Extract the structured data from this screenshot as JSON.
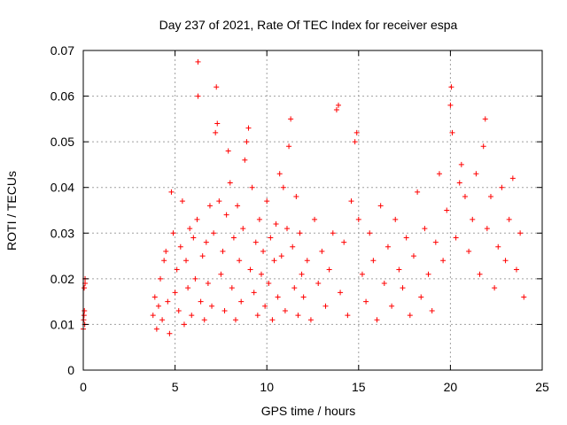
{
  "chart_data": {
    "type": "scatter",
    "title": "Day 237 of 2021, Rate Of TEC Index for receiver espa",
    "xlabel": "GPS time / hours",
    "ylabel": "ROTI / TECUs",
    "xlim": [
      0,
      25
    ],
    "ylim": [
      0,
      0.07
    ],
    "xticks": [
      0,
      5,
      10,
      15,
      20,
      25
    ],
    "xtick_labels": [
      "0",
      "5",
      "10",
      "15",
      "20",
      "25"
    ],
    "yticks": [
      0,
      0.01,
      0.02,
      0.03,
      0.04,
      0.05,
      0.06,
      0.07
    ],
    "ytick_labels": [
      "0",
      "0.01",
      "0.02",
      "0.03",
      "0.04",
      "0.05",
      "0.06",
      "0.07"
    ],
    "grid": true,
    "marker": "+",
    "color": "#ff0000",
    "series": [
      {
        "name": "ROTI",
        "points": [
          [
            0.0,
            0.009
          ],
          [
            0.02,
            0.011
          ],
          [
            0.04,
            0.012
          ],
          [
            0.06,
            0.013
          ],
          [
            0.08,
            0.01
          ],
          [
            0.1,
            0.019
          ],
          [
            0.1,
            0.02
          ],
          [
            0.05,
            0.018
          ],
          [
            3.8,
            0.012
          ],
          [
            3.9,
            0.016
          ],
          [
            4.0,
            0.009
          ],
          [
            4.1,
            0.014
          ],
          [
            4.2,
            0.02
          ],
          [
            4.3,
            0.011
          ],
          [
            4.4,
            0.024
          ],
          [
            4.5,
            0.026
          ],
          [
            4.6,
            0.015
          ],
          [
            4.7,
            0.008
          ],
          [
            4.8,
            0.039
          ],
          [
            4.9,
            0.03
          ],
          [
            5.0,
            0.017
          ],
          [
            5.1,
            0.022
          ],
          [
            5.2,
            0.013
          ],
          [
            5.3,
            0.027
          ],
          [
            5.4,
            0.037
          ],
          [
            5.5,
            0.01
          ],
          [
            5.6,
            0.024
          ],
          [
            5.7,
            0.018
          ],
          [
            5.8,
            0.031
          ],
          [
            5.9,
            0.012
          ],
          [
            6.0,
            0.029
          ],
          [
            6.1,
            0.02
          ],
          [
            6.2,
            0.033
          ],
          [
            6.25,
            0.06
          ],
          [
            6.25,
            0.0675
          ],
          [
            6.4,
            0.015
          ],
          [
            6.5,
            0.025
          ],
          [
            6.6,
            0.011
          ],
          [
            6.7,
            0.028
          ],
          [
            6.8,
            0.019
          ],
          [
            6.9,
            0.036
          ],
          [
            7.0,
            0.014
          ],
          [
            7.1,
            0.03
          ],
          [
            7.2,
            0.052
          ],
          [
            7.25,
            0.062
          ],
          [
            7.3,
            0.054
          ],
          [
            7.4,
            0.037
          ],
          [
            7.5,
            0.021
          ],
          [
            7.6,
            0.026
          ],
          [
            7.7,
            0.013
          ],
          [
            7.8,
            0.034
          ],
          [
            7.9,
            0.048
          ],
          [
            8.0,
            0.041
          ],
          [
            8.1,
            0.018
          ],
          [
            8.2,
            0.029
          ],
          [
            8.3,
            0.011
          ],
          [
            8.4,
            0.036
          ],
          [
            8.5,
            0.024
          ],
          [
            8.6,
            0.015
          ],
          [
            8.7,
            0.031
          ],
          [
            8.8,
            0.046
          ],
          [
            8.9,
            0.05
          ],
          [
            9.0,
            0.053
          ],
          [
            9.1,
            0.022
          ],
          [
            9.2,
            0.04
          ],
          [
            9.3,
            0.017
          ],
          [
            9.4,
            0.028
          ],
          [
            9.5,
            0.012
          ],
          [
            9.6,
            0.033
          ],
          [
            9.7,
            0.021
          ],
          [
            9.8,
            0.026
          ],
          [
            9.9,
            0.014
          ],
          [
            10.0,
            0.037
          ],
          [
            10.1,
            0.019
          ],
          [
            10.2,
            0.029
          ],
          [
            10.3,
            0.011
          ],
          [
            10.4,
            0.024
          ],
          [
            10.5,
            0.032
          ],
          [
            10.6,
            0.016
          ],
          [
            10.7,
            0.043
          ],
          [
            10.8,
            0.025
          ],
          [
            10.9,
            0.04
          ],
          [
            11.0,
            0.013
          ],
          [
            11.1,
            0.031
          ],
          [
            11.2,
            0.049
          ],
          [
            11.3,
            0.055
          ],
          [
            11.4,
            0.027
          ],
          [
            11.5,
            0.018
          ],
          [
            11.6,
            0.038
          ],
          [
            11.7,
            0.012
          ],
          [
            11.8,
            0.03
          ],
          [
            11.9,
            0.021
          ],
          [
            12.0,
            0.016
          ],
          [
            12.2,
            0.024
          ],
          [
            12.4,
            0.011
          ],
          [
            12.6,
            0.033
          ],
          [
            12.8,
            0.019
          ],
          [
            13.0,
            0.026
          ],
          [
            13.2,
            0.014
          ],
          [
            13.4,
            0.022
          ],
          [
            13.6,
            0.03
          ],
          [
            13.8,
            0.057
          ],
          [
            13.9,
            0.058
          ],
          [
            14.0,
            0.017
          ],
          [
            14.2,
            0.028
          ],
          [
            14.4,
            0.012
          ],
          [
            14.6,
            0.037
          ],
          [
            14.8,
            0.05
          ],
          [
            14.9,
            0.052
          ],
          [
            15.0,
            0.033
          ],
          [
            15.2,
            0.021
          ],
          [
            15.4,
            0.015
          ],
          [
            15.6,
            0.03
          ],
          [
            15.8,
            0.024
          ],
          [
            16.0,
            0.011
          ],
          [
            16.2,
            0.036
          ],
          [
            16.4,
            0.019
          ],
          [
            16.6,
            0.027
          ],
          [
            16.8,
            0.014
          ],
          [
            17.0,
            0.033
          ],
          [
            17.2,
            0.022
          ],
          [
            17.4,
            0.018
          ],
          [
            17.6,
            0.029
          ],
          [
            17.8,
            0.012
          ],
          [
            18.0,
            0.025
          ],
          [
            18.2,
            0.039
          ],
          [
            18.4,
            0.016
          ],
          [
            18.6,
            0.031
          ],
          [
            18.8,
            0.021
          ],
          [
            19.0,
            0.013
          ],
          [
            19.2,
            0.028
          ],
          [
            19.4,
            0.043
          ],
          [
            19.6,
            0.024
          ],
          [
            19.8,
            0.035
          ],
          [
            20.0,
            0.058
          ],
          [
            20.05,
            0.062
          ],
          [
            20.1,
            0.052
          ],
          [
            20.3,
            0.029
          ],
          [
            20.5,
            0.041
          ],
          [
            20.6,
            0.045
          ],
          [
            20.8,
            0.038
          ],
          [
            21.0,
            0.026
          ],
          [
            21.2,
            0.033
          ],
          [
            21.4,
            0.043
          ],
          [
            21.6,
            0.021
          ],
          [
            21.8,
            0.049
          ],
          [
            21.9,
            0.055
          ],
          [
            22.0,
            0.031
          ],
          [
            22.2,
            0.038
          ],
          [
            22.4,
            0.018
          ],
          [
            22.6,
            0.027
          ],
          [
            22.8,
            0.04
          ],
          [
            23.0,
            0.024
          ],
          [
            23.2,
            0.033
          ],
          [
            23.4,
            0.042
          ],
          [
            23.6,
            0.022
          ],
          [
            23.8,
            0.03
          ],
          [
            24.0,
            0.016
          ]
        ]
      }
    ]
  }
}
